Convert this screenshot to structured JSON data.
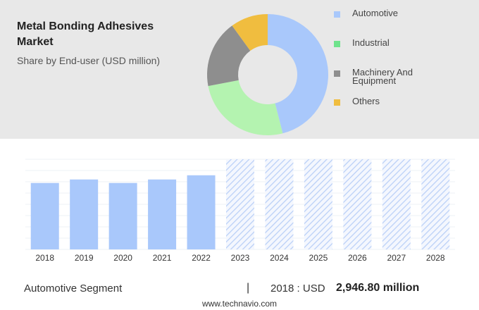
{
  "chart_data": [
    {
      "type": "pie",
      "title": "Metal Bonding Adhesives Market",
      "subtitle": "Share by End-user (USD million)",
      "donut": true,
      "categories": [
        "Automotive",
        "Industrial",
        "Machinery And Equipment",
        "Others"
      ],
      "values": [
        46,
        26,
        18,
        10
      ],
      "colors": [
        "#a9c8fb",
        "#b4f3b0",
        "#8e8e8e",
        "#f0bd3f"
      ],
      "legend_colors": [
        "#a9c8fb",
        "#6fe38c",
        "#8e8e8e",
        "#f0bd3f"
      ],
      "legend": "right"
    },
    {
      "type": "bar",
      "categories": [
        "2018",
        "2019",
        "2020",
        "2021",
        "2022",
        "2023",
        "2024",
        "2025",
        "2026",
        "2027",
        "2028"
      ],
      "values": [
        2946.8,
        3102,
        2947,
        3102,
        3288,
        null,
        null,
        null,
        null,
        null,
        null
      ],
      "color": "#a9c8fb",
      "ylim": [
        0,
        4000
      ],
      "forecast_hatched": true
    }
  ],
  "highlight": {
    "segment": "Automotive Segment",
    "separator": "|",
    "year": "2018 : USD",
    "value": "2,946.80 million"
  },
  "footer": "www.technavio.com"
}
